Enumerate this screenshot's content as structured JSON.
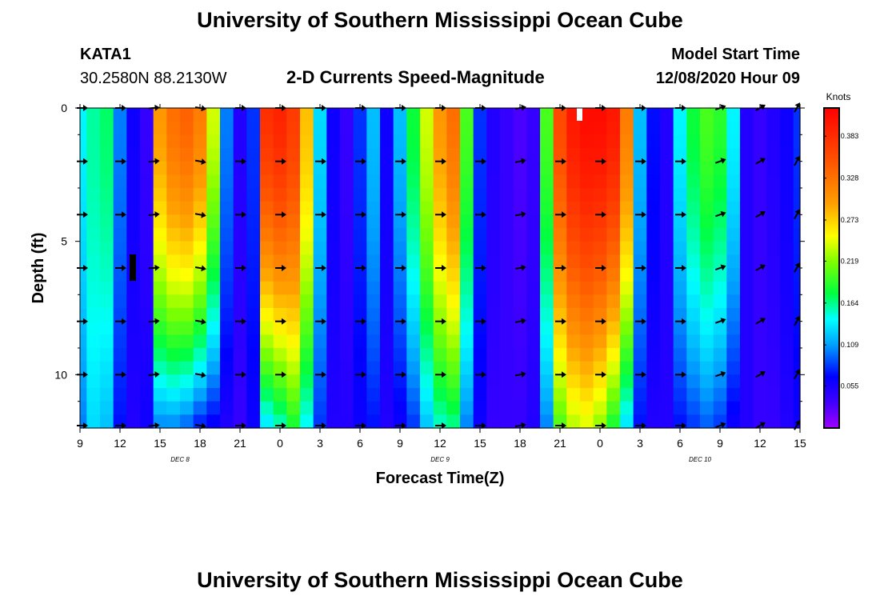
{
  "header": {
    "title": "University of Southern Mississippi Ocean Cube",
    "station": "KATA1",
    "coords": "30.2580N 88.2130W",
    "plot_title": "2-D Currents Speed-Magnitude",
    "model_start_label": "Model Start Time",
    "model_start_value": "12/08/2020 Hour 09"
  },
  "footer": {
    "title": "University of Southern Mississippi Ocean Cube"
  },
  "chart_data": {
    "type": "heatmap",
    "title": "2-D Currents Speed-Magnitude",
    "xlabel": "Forecast Time(Z)",
    "ylabel": "Depth (ft)",
    "colorbar_label": "Knots",
    "x_unit": "hours since Dec 8 09Z",
    "xlim": [
      0,
      54
    ],
    "ylim": [
      0,
      12
    ],
    "y_inverted": true,
    "x_ticks": [
      {
        "h": 0,
        "label": "9"
      },
      {
        "h": 3,
        "label": "12"
      },
      {
        "h": 6,
        "label": "15"
      },
      {
        "h": 9,
        "label": "18"
      },
      {
        "h": 12,
        "label": "21"
      },
      {
        "h": 15,
        "label": "0"
      },
      {
        "h": 18,
        "label": "3"
      },
      {
        "h": 21,
        "label": "6"
      },
      {
        "h": 24,
        "label": "9"
      },
      {
        "h": 27,
        "label": "12"
      },
      {
        "h": 30,
        "label": "15"
      },
      {
        "h": 33,
        "label": "18"
      },
      {
        "h": 36,
        "label": "21"
      },
      {
        "h": 39,
        "label": "0"
      },
      {
        "h": 42,
        "label": "3"
      },
      {
        "h": 45,
        "label": "6"
      },
      {
        "h": 48,
        "label": "9"
      },
      {
        "h": 51,
        "label": "12"
      },
      {
        "h": 54,
        "label": "15"
      }
    ],
    "date_labels": [
      {
        "h": 7.5,
        "label": "DEC 8"
      },
      {
        "h": 27,
        "label": "DEC 9"
      },
      {
        "h": 46.5,
        "label": "DEC 10"
      }
    ],
    "y_ticks": [
      {
        "d": 0,
        "label": "0"
      },
      {
        "d": 5,
        "label": "5"
      },
      {
        "d": 10,
        "label": "10"
      }
    ],
    "colorbar_ticks": [
      0.383,
      0.328,
      0.273,
      0.219,
      0.164,
      0.109,
      0.055
    ],
    "colorbar_range": [
      0.0,
      0.42
    ],
    "speed_profile": {
      "hours": [
        0,
        1,
        2,
        3,
        4,
        5,
        6,
        7,
        8,
        9,
        10,
        11,
        12,
        13,
        14,
        15,
        16,
        17,
        18,
        19,
        20,
        21,
        22,
        23,
        24,
        25,
        26,
        27,
        28,
        29,
        30,
        31,
        32,
        33,
        34,
        35,
        36,
        37,
        38,
        39,
        40,
        41,
        42,
        43,
        44,
        45,
        46,
        47,
        48,
        49,
        50,
        51,
        52,
        53,
        54
      ],
      "surface_knots": [
        0.14,
        0.16,
        0.17,
        0.1,
        0.06,
        0.04,
        0.3,
        0.33,
        0.34,
        0.32,
        0.24,
        0.1,
        0.05,
        0.08,
        0.38,
        0.39,
        0.37,
        0.28,
        0.13,
        0.06,
        0.04,
        0.08,
        0.12,
        0.06,
        0.12,
        0.18,
        0.24,
        0.3,
        0.33,
        0.2,
        0.08,
        0.05,
        0.04,
        0.03,
        0.04,
        0.2,
        0.36,
        0.4,
        0.41,
        0.41,
        0.4,
        0.32,
        0.12,
        0.07,
        0.05,
        0.14,
        0.18,
        0.2,
        0.19,
        0.14,
        0.05,
        0.04,
        0.05,
        0.06,
        0.08
      ],
      "bottom_knots": [
        0.1,
        0.13,
        0.12,
        0.07,
        0.05,
        0.06,
        0.1,
        0.1,
        0.09,
        0.07,
        0.06,
        0.05,
        0.04,
        0.06,
        0.13,
        0.15,
        0.18,
        0.14,
        0.08,
        0.05,
        0.05,
        0.06,
        0.07,
        0.05,
        0.06,
        0.08,
        0.12,
        0.15,
        0.16,
        0.1,
        0.06,
        0.04,
        0.04,
        0.04,
        0.05,
        0.1,
        0.2,
        0.23,
        0.24,
        0.22,
        0.18,
        0.13,
        0.07,
        0.05,
        0.05,
        0.07,
        0.08,
        0.09,
        0.08,
        0.06,
        0.05,
        0.04,
        0.04,
        0.05,
        0.06
      ],
      "bottom_depth_ft": 12
    },
    "vector_rows_depth_ft": [
      0,
      2,
      4,
      6,
      8,
      10,
      12
    ],
    "vector_columns_hours": [
      0,
      3,
      5.5,
      9,
      12,
      15,
      18,
      21,
      24,
      27,
      30,
      33,
      36,
      39,
      42,
      45,
      48,
      51,
      54
    ],
    "vector_directions_deg": [
      0,
      0,
      5,
      -10,
      0,
      0,
      0,
      0,
      0,
      0,
      0,
      10,
      0,
      0,
      0,
      0,
      20,
      30,
      60
    ]
  }
}
